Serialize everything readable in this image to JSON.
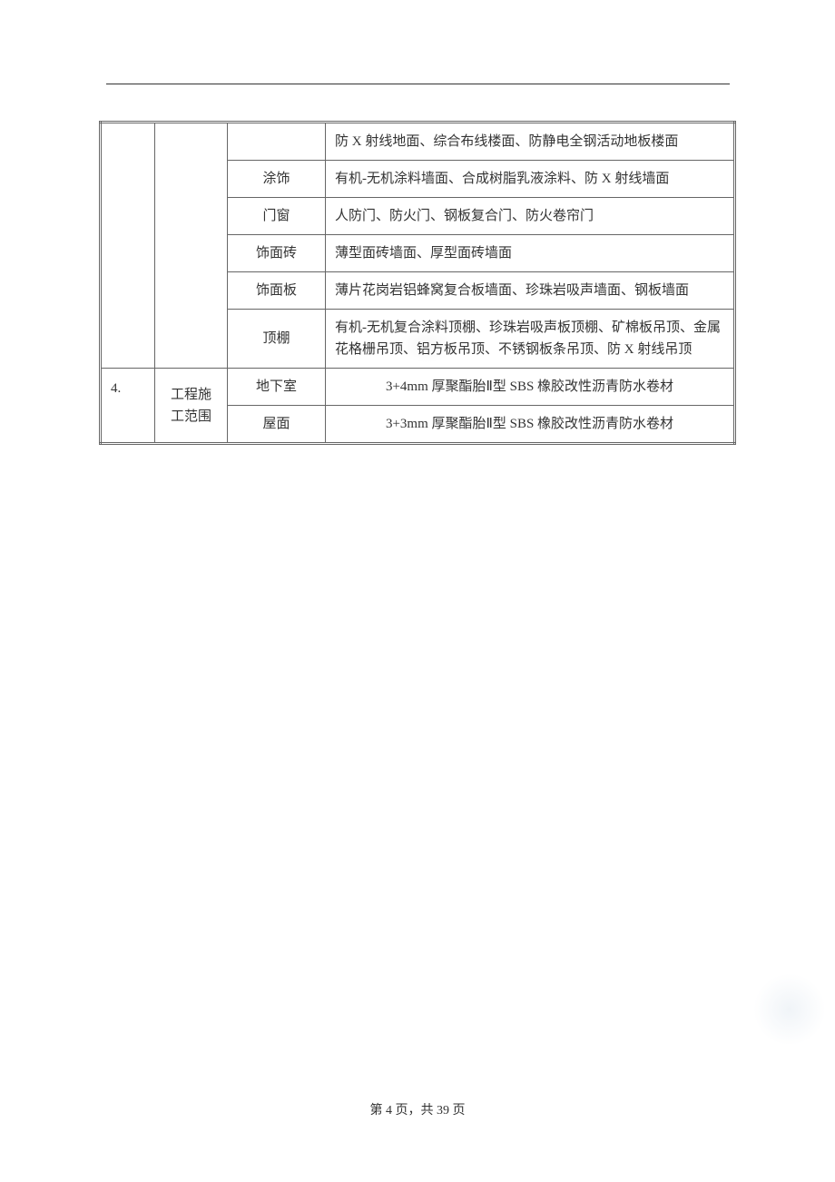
{
  "table": {
    "rows": [
      {
        "num": "",
        "category": "",
        "type": "",
        "desc": "防 X 射线地面、综合布线楼面、防静电全钢活动地板楼面"
      },
      {
        "type": "涂饰",
        "desc": "有机-无机涂料墙面、合成树脂乳液涂料、防 X 射线墙面"
      },
      {
        "type": "门窗",
        "desc": "人防门、防火门、钢板复合门、防火卷帘门"
      },
      {
        "type": "饰面砖",
        "desc": "薄型面砖墙面、厚型面砖墙面"
      },
      {
        "type": "饰面板",
        "desc": "薄片花岗岩铝蜂窝复合板墙面、珍珠岩吸声墙面、钢板墙面"
      },
      {
        "type": "顶棚",
        "desc": "有机-无机复合涂料顶棚、珍珠岩吸声板顶棚、矿棉板吊顶、金属花格栅吊顶、铝方板吊顶、不锈钢板条吊顶、防 X 射线吊顶"
      },
      {
        "num": "4.",
        "category": "工程施工范围",
        "type": "地下室",
        "desc": "3+4mm 厚聚酯胎Ⅱ型 SBS 橡胶改性沥青防水卷材"
      },
      {
        "type": "屋面",
        "desc": "3+3mm 厚聚酯胎Ⅱ型 SBS 橡胶改性沥青防水卷材"
      }
    ]
  },
  "footer": {
    "text": "第 4 页，共 39 页"
  }
}
